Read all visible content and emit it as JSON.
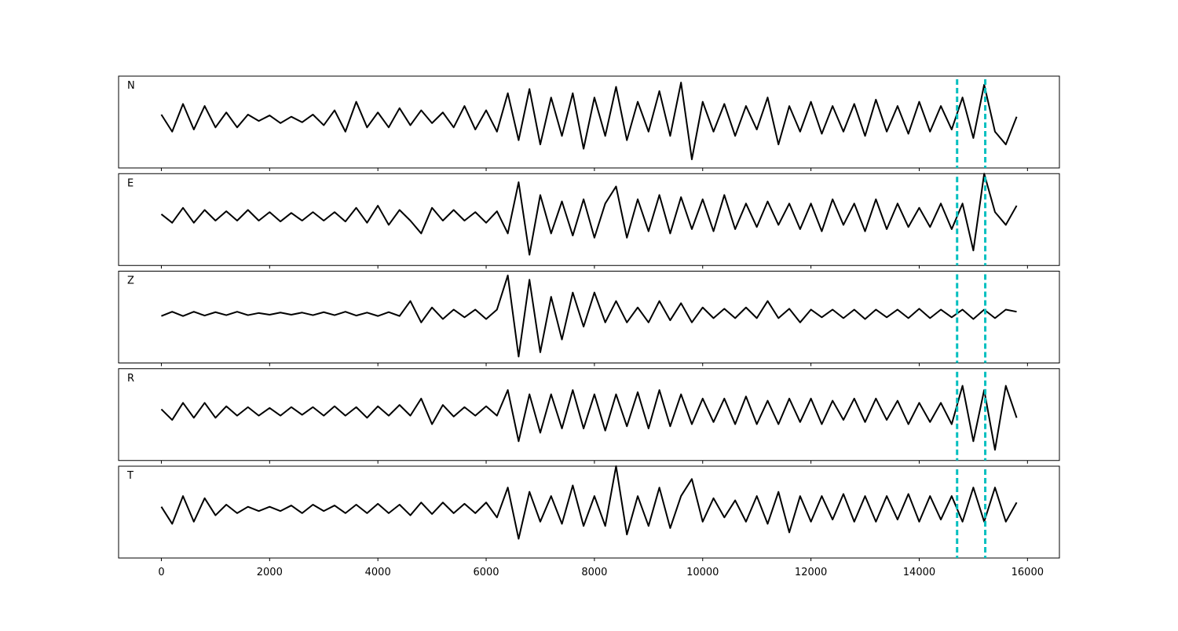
{
  "chart_data": {
    "type": "line",
    "subplots": true,
    "x": [
      0,
      200,
      400,
      600,
      800,
      1000,
      1200,
      1400,
      1600,
      1800,
      2000,
      2200,
      2400,
      2600,
      2800,
      3000,
      3200,
      3400,
      3600,
      3800,
      4000,
      4200,
      4400,
      4600,
      4800,
      5000,
      5200,
      5400,
      5600,
      5800,
      6000,
      6200,
      6400,
      6600,
      6800,
      7000,
      7200,
      7400,
      7600,
      7800,
      8000,
      8200,
      8400,
      8600,
      8800,
      9000,
      9200,
      9400,
      9600,
      9800,
      10000,
      10200,
      10400,
      10600,
      10800,
      11000,
      11200,
      11400,
      11600,
      11800,
      12000,
      12200,
      12400,
      12600,
      12800,
      13000,
      13200,
      13400,
      13600,
      13800,
      14000,
      14200,
      14400,
      14600,
      14800,
      15000,
      15200,
      15400,
      15600,
      15800
    ],
    "series": [
      {
        "name": "N",
        "color": "#000000",
        "values": [
          0.1,
          -0.3,
          0.35,
          -0.25,
          0.3,
          -0.2,
          0.15,
          -0.2,
          0.1,
          -0.05,
          0.08,
          -0.1,
          0.05,
          -0.08,
          0.1,
          -0.15,
          0.2,
          -0.3,
          0.4,
          -0.2,
          0.15,
          -0.2,
          0.25,
          -0.15,
          0.2,
          -0.1,
          0.15,
          -0.2,
          0.3,
          -0.25,
          0.2,
          -0.3,
          0.6,
          -0.5,
          0.7,
          -0.6,
          0.5,
          -0.4,
          0.6,
          -0.7,
          0.5,
          -0.4,
          0.75,
          -0.5,
          0.4,
          -0.3,
          0.65,
          -0.4,
          0.85,
          -0.95,
          0.4,
          -0.3,
          0.35,
          -0.4,
          0.3,
          -0.25,
          0.5,
          -0.6,
          0.3,
          -0.3,
          0.4,
          -0.35,
          0.3,
          -0.3,
          0.35,
          -0.4,
          0.45,
          -0.3,
          0.3,
          -0.35,
          0.4,
          -0.3,
          0.3,
          -0.25,
          0.5,
          -0.45,
          0.8,
          -0.3,
          -0.6,
          0.05
        ]
      },
      {
        "name": "E",
        "color": "#000000",
        "values": [
          0.05,
          -0.15,
          0.2,
          -0.15,
          0.15,
          -0.1,
          0.12,
          -0.1,
          0.15,
          -0.1,
          0.1,
          -0.12,
          0.08,
          -0.1,
          0.1,
          -0.1,
          0.1,
          -0.12,
          0.2,
          -0.15,
          0.25,
          -0.2,
          0.15,
          -0.1,
          -0.4,
          0.2,
          -0.1,
          0.15,
          -0.1,
          0.1,
          -0.15,
          0.12,
          -0.4,
          0.8,
          -0.9,
          0.5,
          -0.4,
          0.35,
          -0.45,
          0.4,
          -0.5,
          0.3,
          0.7,
          -0.5,
          0.4,
          -0.35,
          0.5,
          -0.4,
          0.45,
          -0.3,
          0.4,
          -0.35,
          0.5,
          -0.3,
          0.3,
          -0.25,
          0.35,
          -0.2,
          0.3,
          -0.3,
          0.3,
          -0.35,
          0.4,
          -0.2,
          0.3,
          -0.35,
          0.4,
          -0.3,
          0.3,
          -0.25,
          0.2,
          -0.25,
          0.3,
          -0.3,
          0.3,
          -0.8,
          1.0,
          0.1,
          -0.2,
          0.25
        ]
      },
      {
        "name": "Z",
        "color": "#000000",
        "values": [
          -0.05,
          0.05,
          -0.05,
          0.05,
          -0.04,
          0.04,
          -0.03,
          0.05,
          -0.03,
          0.02,
          -0.02,
          0.03,
          -0.02,
          0.03,
          -0.03,
          0.04,
          -0.03,
          0.05,
          -0.04,
          0.03,
          -0.05,
          0.04,
          -0.05,
          0.3,
          -0.2,
          0.15,
          -0.12,
          0.1,
          -0.08,
          0.1,
          -0.12,
          0.1,
          0.9,
          -1.0,
          0.8,
          -0.9,
          0.4,
          -0.6,
          0.5,
          -0.3,
          0.5,
          -0.2,
          0.3,
          -0.2,
          0.15,
          -0.2,
          0.3,
          -0.15,
          0.25,
          -0.2,
          0.15,
          -0.1,
          0.12,
          -0.1,
          0.15,
          -0.1,
          0.3,
          -0.1,
          0.12,
          -0.2,
          0.1,
          -0.08,
          0.1,
          -0.1,
          0.1,
          -0.12,
          0.1,
          -0.08,
          0.1,
          -0.1,
          0.12,
          -0.1,
          0.1,
          -0.08,
          0.1,
          -0.12,
          0.1,
          -0.1,
          0.1,
          0.05
        ]
      },
      {
        "name": "R",
        "color": "#000000",
        "values": [
          0.05,
          -0.2,
          0.2,
          -0.15,
          0.2,
          -0.15,
          0.12,
          -0.1,
          0.1,
          -0.1,
          0.08,
          -0.1,
          0.1,
          -0.08,
          0.1,
          -0.1,
          0.12,
          -0.1,
          0.1,
          -0.15,
          0.12,
          -0.1,
          0.15,
          -0.1,
          0.3,
          -0.3,
          0.15,
          -0.12,
          0.1,
          -0.1,
          0.12,
          -0.1,
          0.5,
          -0.7,
          0.4,
          -0.5,
          0.4,
          -0.4,
          0.5,
          -0.4,
          0.4,
          -0.45,
          0.4,
          -0.35,
          0.45,
          -0.4,
          0.5,
          -0.35,
          0.4,
          -0.3,
          0.3,
          -0.25,
          0.3,
          -0.3,
          0.35,
          -0.3,
          0.25,
          -0.3,
          0.3,
          -0.25,
          0.3,
          -0.3,
          0.25,
          -0.2,
          0.3,
          -0.25,
          0.3,
          -0.2,
          0.25,
          -0.3,
          0.2,
          -0.25,
          0.2,
          -0.3,
          0.6,
          -0.7,
          0.5,
          -0.9,
          0.6,
          -0.15
        ]
      },
      {
        "name": "T",
        "color": "#000000",
        "values": [
          0.05,
          -0.35,
          0.3,
          -0.3,
          0.25,
          -0.15,
          0.1,
          -0.1,
          0.05,
          -0.05,
          0.05,
          -0.05,
          0.08,
          -0.1,
          0.1,
          -0.05,
          0.08,
          -0.1,
          0.1,
          -0.1,
          0.12,
          -0.1,
          0.1,
          -0.15,
          0.15,
          -0.12,
          0.15,
          -0.1,
          0.12,
          -0.1,
          0.15,
          -0.2,
          0.5,
          -0.7,
          0.4,
          -0.3,
          0.3,
          -0.35,
          0.55,
          -0.4,
          0.3,
          -0.4,
          1.0,
          -0.6,
          0.3,
          -0.4,
          0.5,
          -0.45,
          0.3,
          0.7,
          -0.3,
          0.25,
          -0.2,
          0.2,
          -0.3,
          0.3,
          -0.35,
          0.4,
          -0.55,
          0.3,
          -0.3,
          0.3,
          -0.25,
          0.35,
          -0.3,
          0.3,
          -0.3,
          0.3,
          -0.25,
          0.35,
          -0.3,
          0.3,
          -0.25,
          0.3,
          -0.3,
          0.5,
          -0.3,
          0.5,
          -0.3,
          0.15
        ]
      }
    ],
    "vlines": [
      14700,
      15220
    ],
    "vline_color": "#00bfbf",
    "xlim": [
      -790,
      16590
    ],
    "ylim": [
      -1.15,
      1.0
    ],
    "xticks": [
      0,
      2000,
      4000,
      6000,
      8000,
      10000,
      12000,
      14000,
      16000
    ]
  }
}
